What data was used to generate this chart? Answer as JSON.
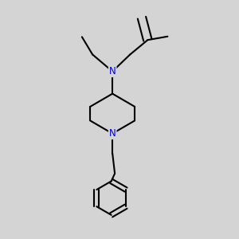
{
  "background_color": "#d4d4d4",
  "bond_color": "#000000",
  "nitrogen_color": "#0000cc",
  "line_width": 1.5,
  "font_size": 8.5,
  "figsize": [
    3.0,
    3.0
  ],
  "dpi": 100
}
